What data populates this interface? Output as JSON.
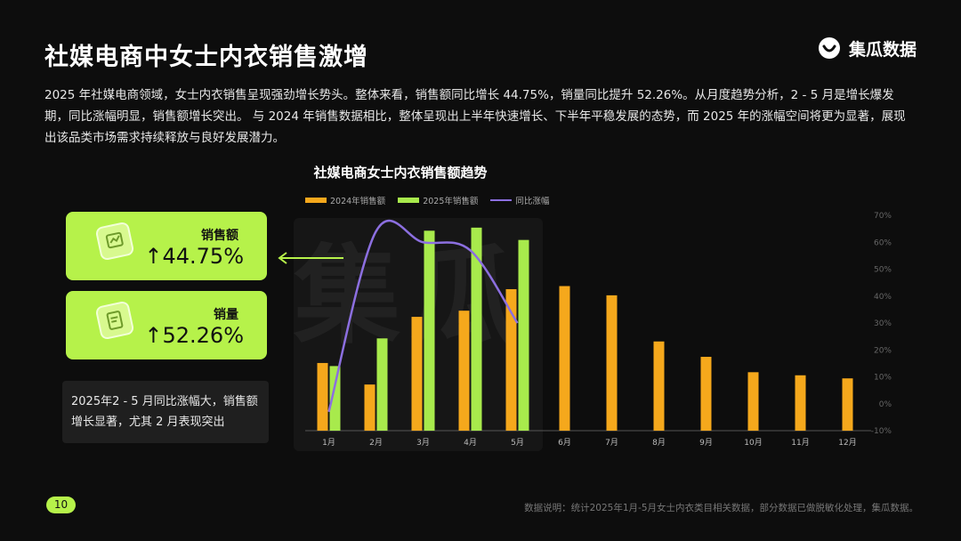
{
  "header": {
    "title": "社媒电商中女士内衣销售激增",
    "brand": "集瓜数据",
    "brand_icon": "smile-logo-icon",
    "watermark": "集瓜"
  },
  "summary": "2025 年社媒电商领域，女士内衣销售呈现强劲增长势头。整体来看，销售额同比增长 44.75%，销量同比提升 52.26%。从月度趋势分析，2 - 5 月是增长爆发期，同比涨幅明显，销售额增长突出。 与 2024 年销售数据相比，整体呈现出上半年快速增长、下半年平稳发展的态势，而 2025 年的涨幅空间将更为显著，展现出该品类市场需求持续释放与良好发展潜力。",
  "kpis": [
    {
      "label": "销售额",
      "value": "↑44.75%",
      "icon": "chart-card-icon"
    },
    {
      "label": "销量",
      "value": "↑52.26%",
      "icon": "receipt-card-icon"
    }
  ],
  "note": "2025年2 - 5 月同比涨幅大，销售额增长显著，尤其 2 月表现突出",
  "footer": {
    "page": "10",
    "source": "数据说明：统计2025年1月-5月女士内衣类目相关数据，部分数据已做脱敏化处理，集瓜数据。"
  },
  "colors": {
    "bar_2024": "#f5a81c",
    "bar_2025": "#a8ea4c",
    "line": "#8c6fe0",
    "accent": "#b6f24a"
  },
  "chart_data": {
    "type": "bar",
    "title": "社媒电商女士内衣销售额趋势",
    "categories": [
      "1月",
      "2月",
      "3月",
      "4月",
      "5月",
      "6月",
      "7月",
      "8月",
      "9月",
      "10月",
      "11月",
      "12月"
    ],
    "series": [
      {
        "name": "2024年销售额",
        "type": "bar",
        "values": [
          22,
          15,
          37,
          39,
          46,
          47,
          44,
          29,
          24,
          19,
          18,
          17
        ]
      },
      {
        "name": "2025年销售额",
        "type": "bar",
        "values": [
          21,
          30,
          65,
          66,
          62,
          null,
          null,
          null,
          null,
          null,
          null,
          null
        ]
      },
      {
        "name": "同比涨幅",
        "type": "line",
        "axis": "right",
        "values": [
          -3,
          64,
          60,
          57,
          30,
          null,
          null,
          null,
          null,
          null,
          null,
          null
        ]
      }
    ],
    "y_left": {
      "range": [
        0,
        70
      ]
    },
    "y_right": {
      "range": [
        -10,
        70
      ],
      "ticks": [
        "70%",
        "60%",
        "50%",
        "40%",
        "30%",
        "20%",
        "10%",
        "0%",
        "-10%"
      ]
    },
    "legend_position": "top-left"
  }
}
